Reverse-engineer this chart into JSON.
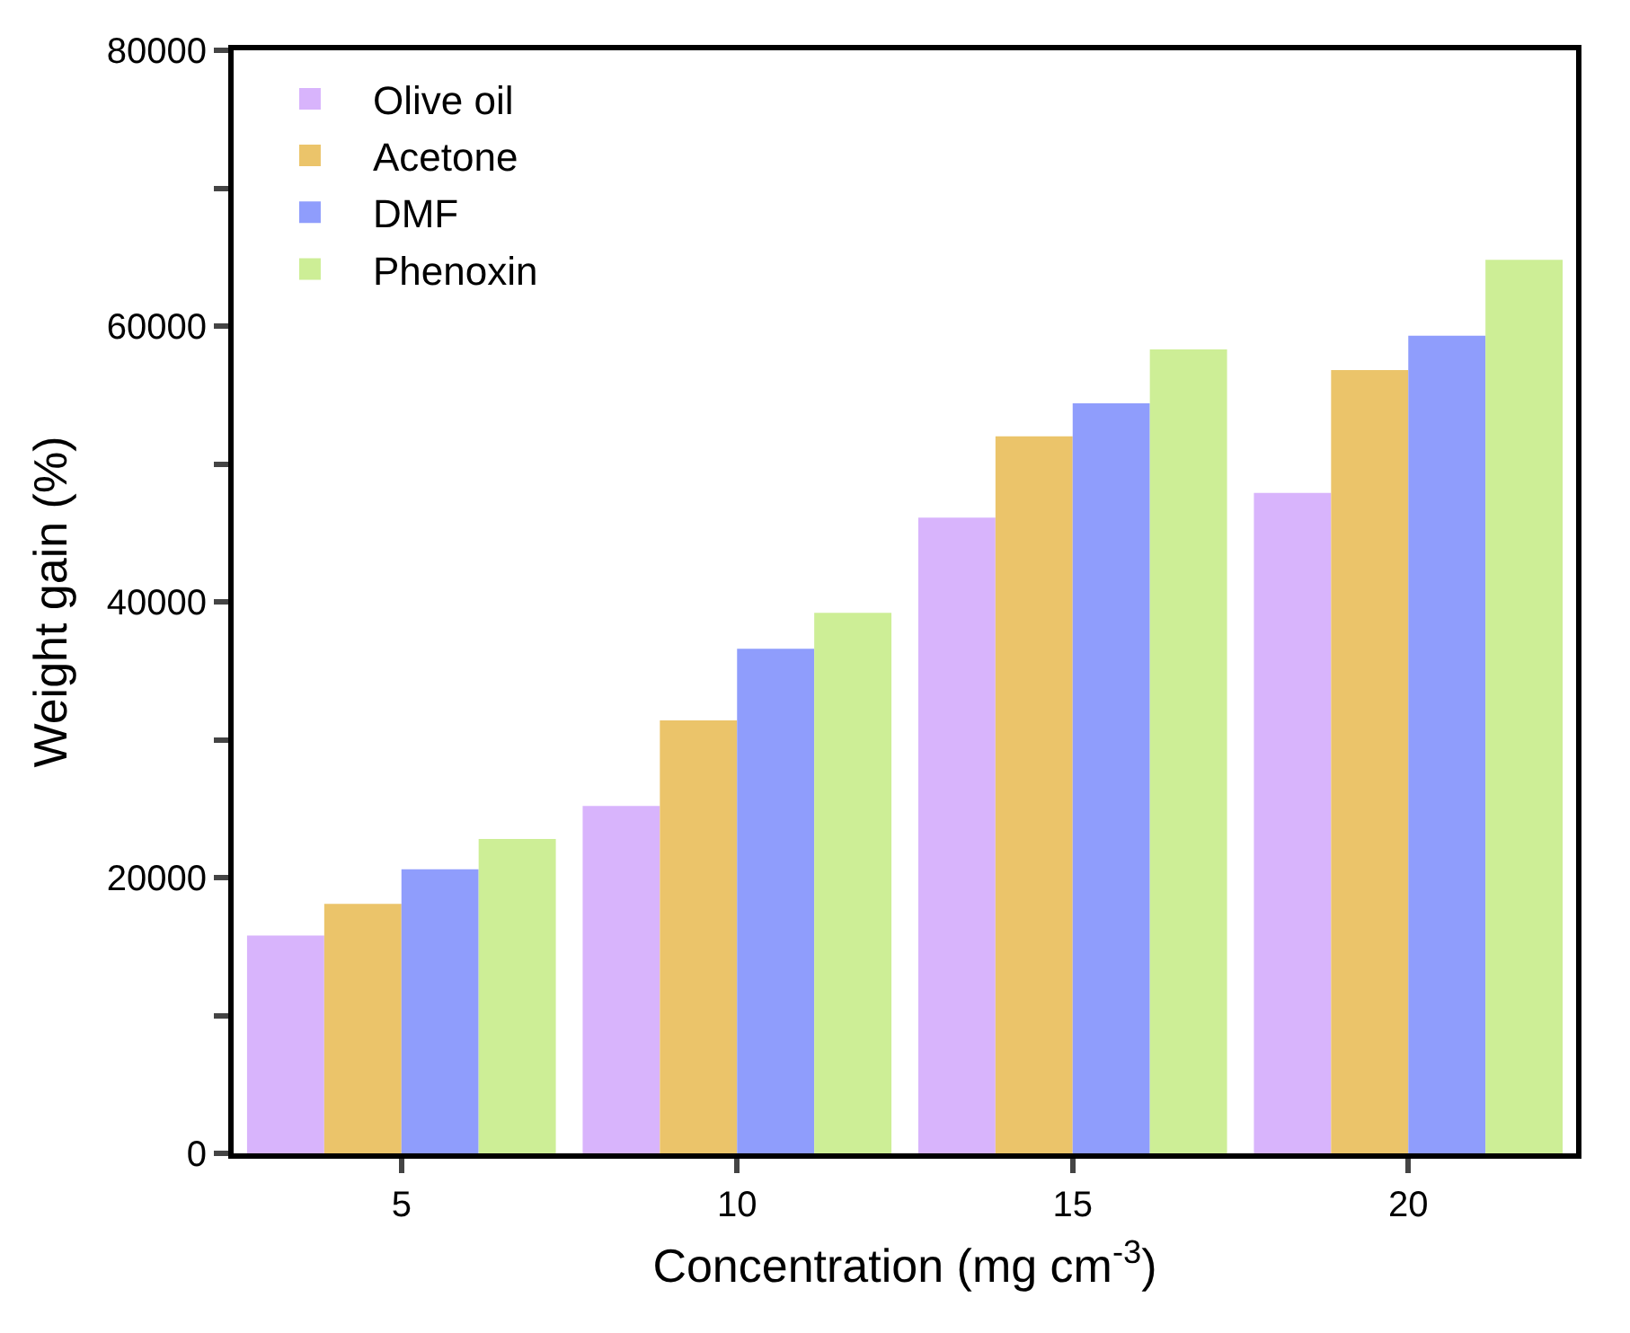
{
  "chart_data": {
    "type": "bar",
    "xlabel": "Concentration (mg cm$^{-3}$)",
    "ylabel": "Weight gain (%)",
    "categories": [
      "5",
      "10",
      "15",
      "20"
    ],
    "series": [
      {
        "name": "Olive oil",
        "color": "#d8b4fc",
        "values": [
          15800,
          25200,
          46100,
          47900
        ]
      },
      {
        "name": "Acetone",
        "color": "#ebc46a",
        "values": [
          18100,
          31400,
          52000,
          56800
        ]
      },
      {
        "name": "DMF",
        "color": "#8f9dfc",
        "values": [
          20600,
          36600,
          54400,
          59300
        ]
      },
      {
        "name": "Phenoxin",
        "color": "#cdee96",
        "values": [
          22800,
          39200,
          58300,
          64800
        ]
      }
    ],
    "ylim": [
      0,
      80000
    ],
    "yticks": [
      0,
      {
        "value": 10000,
        "label": null
      },
      20000,
      {
        "value": 30000,
        "label": null
      },
      40000,
      {
        "value": 50000,
        "label": null
      },
      60000,
      {
        "value": 70000,
        "label": null
      },
      80000
    ],
    "legend": "top left"
  }
}
